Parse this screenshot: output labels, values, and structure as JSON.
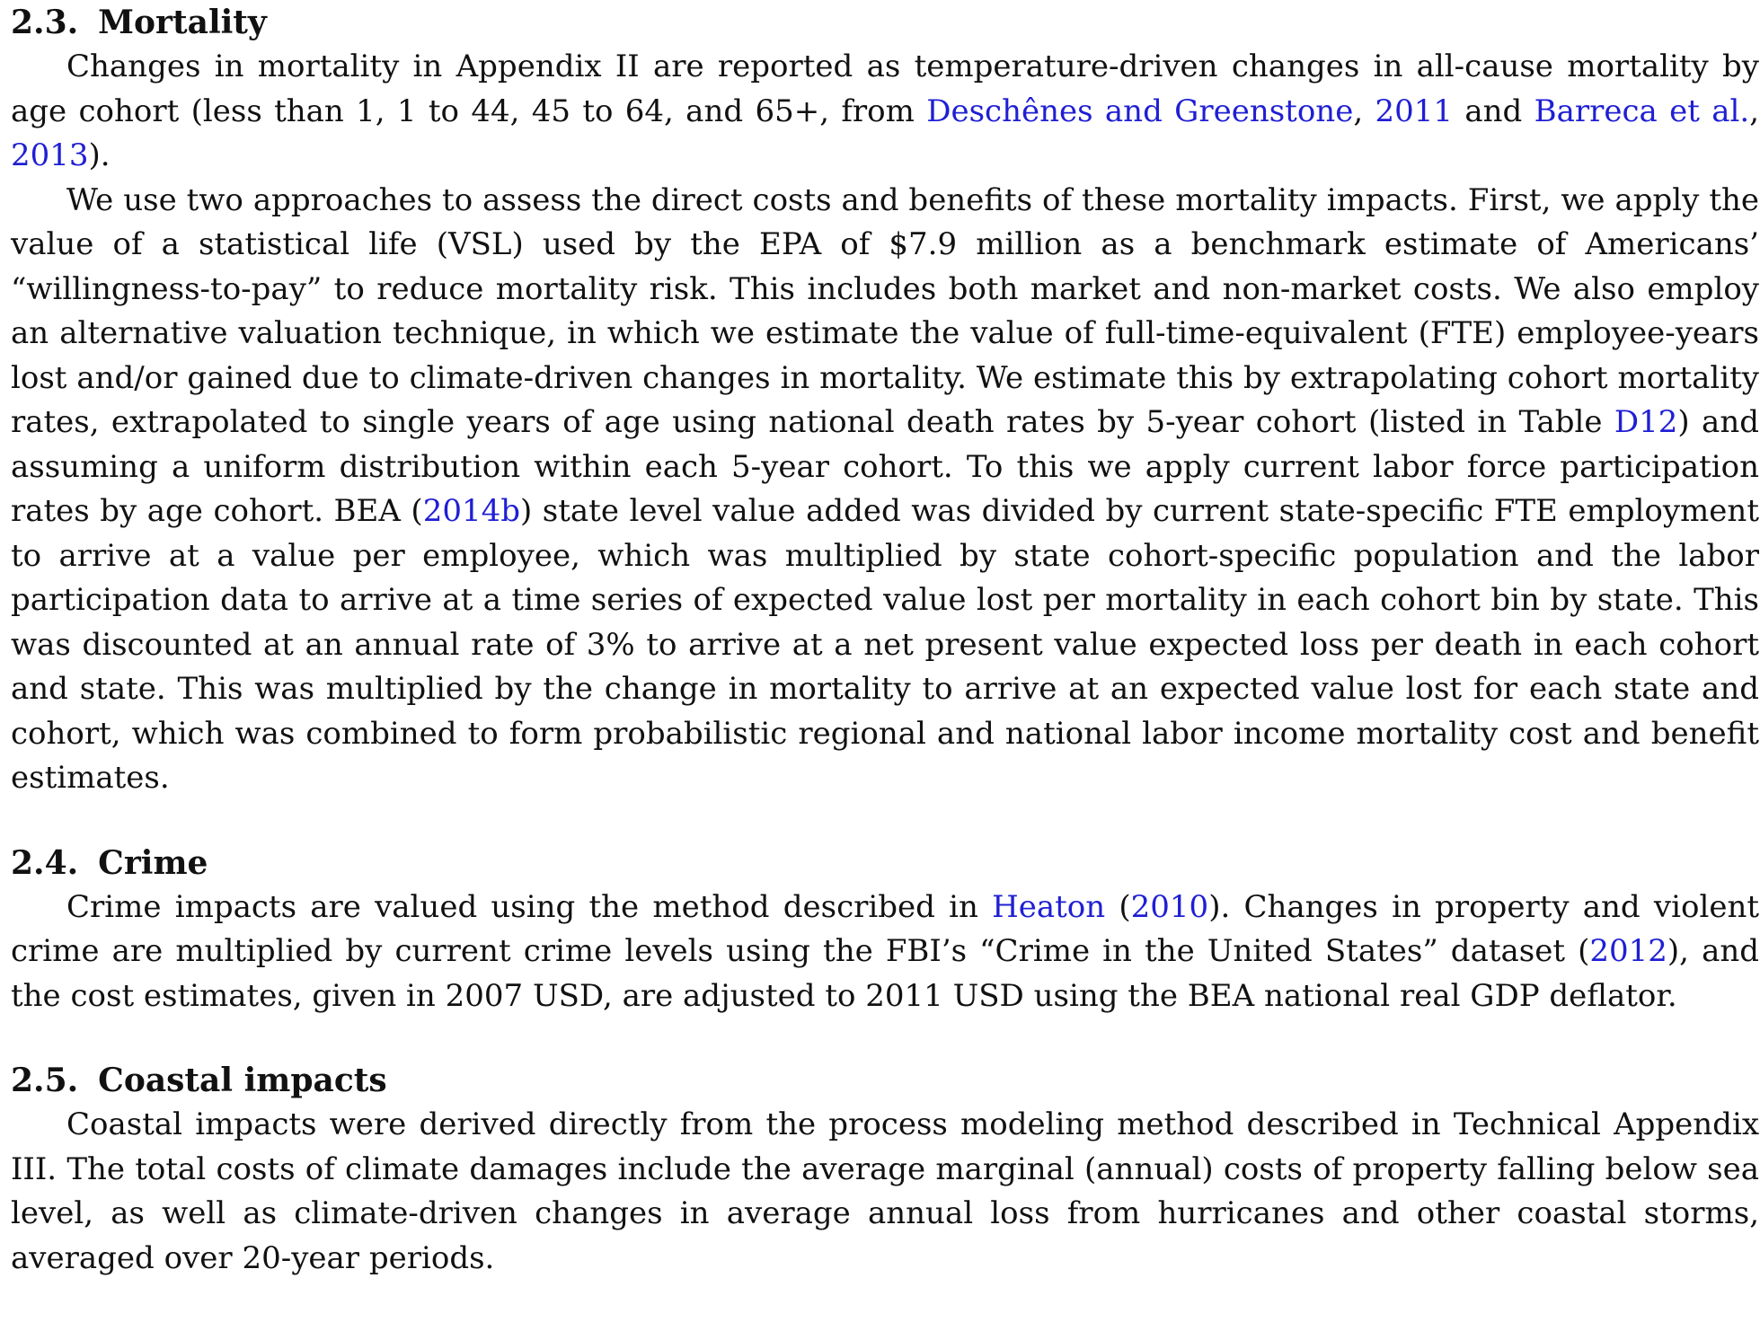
{
  "sections": [
    {
      "number": "2.3.",
      "title": "Mortality",
      "paragraphs": [
        {
          "segments": [
            {
              "text": "Changes in mortality in Appendix II are reported as temperature-driven changes in all-cause mortality by age cohort (less than 1, 1 to 44, 45 to 64, and 65+, from ",
              "link": false
            },
            {
              "text": "Deschênes and Greenstone",
              "link": true
            },
            {
              "text": ", ",
              "link": false
            },
            {
              "text": "2011",
              "link": true
            },
            {
              "text": " and ",
              "link": false
            },
            {
              "text": "Barreca et al.",
              "link": true
            },
            {
              "text": ", ",
              "link": false
            },
            {
              "text": "2013",
              "link": true
            },
            {
              "text": ").",
              "link": false
            }
          ]
        },
        {
          "segments": [
            {
              "text": "We use two approaches to assess the direct costs and benefits of these mortality impacts. First, we apply the value of a statistical life (VSL) used by the EPA of $7.9 million as a benchmark estimate of Americans’ “willingness-to-pay” to reduce mortality risk. This includes both market and non-market costs. We also employ an alternative valuation technique, in which we estimate the value of full-time-equivalent (FTE) employee-years lost and/or gained due to climate-driven changes in mortality. We estimate this by extrapolating cohort mortality rates, extrapolated to single years of age using national death rates by 5-year cohort (listed in Table ",
              "link": false
            },
            {
              "text": "D12",
              "link": true
            },
            {
              "text": ") and assuming a uniform distribution within each 5-year cohort. To this we apply current labor force participation rates by age cohort. BEA (",
              "link": false
            },
            {
              "text": "2014b",
              "link": true
            },
            {
              "text": ") state level value added was divided by current state-specific FTE employment to arrive at a value per employee, which was multiplied by state cohort-specific population and the labor participation data to arrive at a time series of expected value lost per mortality in each cohort bin by state. This was discounted at an annual rate of 3% to arrive at a net present value expected loss per death in each cohort and state. This was multiplied by the change in mortality to arrive at an expected value lost for each state and cohort, which was combined to form probabilistic regional and national labor income mortality cost and benefit estimates.",
              "link": false
            }
          ]
        }
      ]
    },
    {
      "number": "2.4.",
      "title": "Crime",
      "paragraphs": [
        {
          "segments": [
            {
              "text": "Crime impacts are valued using the method described in ",
              "link": false
            },
            {
              "text": "Heaton",
              "link": true
            },
            {
              "text": " (",
              "link": false
            },
            {
              "text": "2010",
              "link": true
            },
            {
              "text": "). Changes in property and violent crime are multiplied by current crime levels using the FBI’s “Crime in the United States” dataset (",
              "link": false
            },
            {
              "text": "2012",
              "link": true
            },
            {
              "text": "), and the cost estimates, given in 2007 USD, are adjusted to 2011 USD using the BEA national real GDP deflator.",
              "link": false
            }
          ]
        }
      ]
    },
    {
      "number": "2.5.",
      "title": "Coastal impacts",
      "paragraphs": [
        {
          "segments": [
            {
              "text": "Coastal impacts were derived directly from the process modeling method described in Technical Appendix III. The total costs of climate damages include the average marginal (annual) costs of property falling below sea level, as well as climate-driven changes in average annual loss from hurricanes and other coastal storms, averaged over 20-year periods.",
              "link": false
            }
          ]
        }
      ]
    }
  ],
  "colors": {
    "text": "#111111",
    "link": "#1f1fd4",
    "background": "#ffffff"
  }
}
